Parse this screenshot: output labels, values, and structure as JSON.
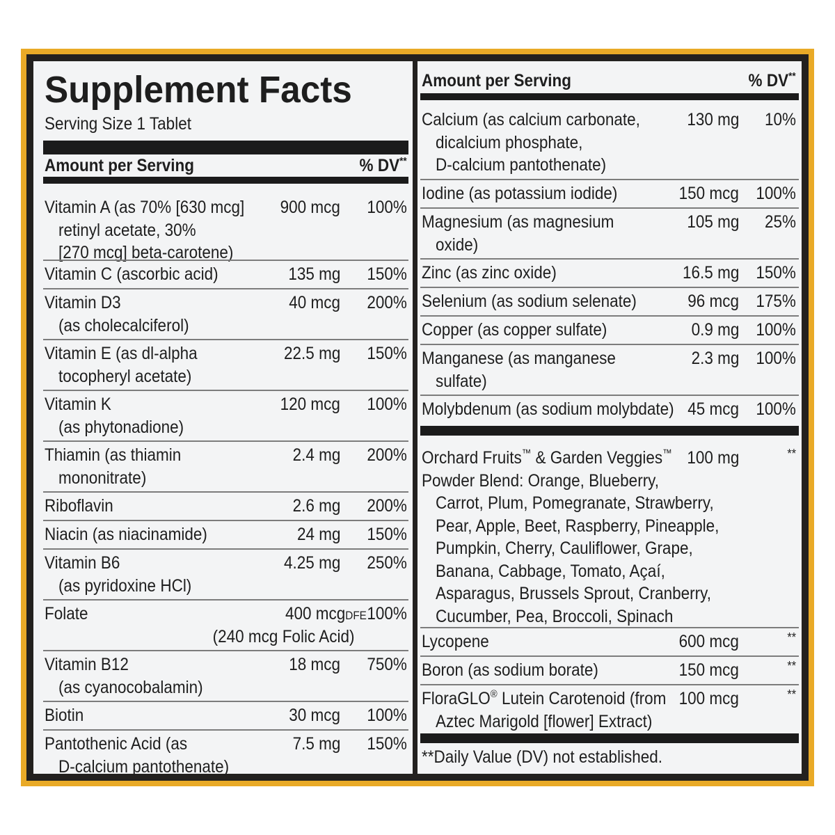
{
  "title": "Supplement Facts",
  "serving_size": "Serving Size 1 Tablet",
  "header": {
    "amount": "Amount per Serving",
    "dv": "% DV",
    "dv_mark": "**"
  },
  "left_rows": [
    {
      "lines": [
        "Vitamin A (as 70% [630 mcg]",
        "retinyl acetate, 30%",
        "[270 mcg] beta-carotene)"
      ],
      "amount": "900 mcg",
      "dv": "100%"
    },
    {
      "lines": [
        "Vitamin C (ascorbic acid)"
      ],
      "amount": "135 mg",
      "dv": "150%"
    },
    {
      "lines": [
        "Vitamin D3",
        "(as cholecalciferol)"
      ],
      "amount": "40 mcg",
      "dv": "200%"
    },
    {
      "lines": [
        "Vitamin E (as dl-alpha",
        "tocopheryl acetate)"
      ],
      "amount": "22.5 mg",
      "dv": "150%"
    },
    {
      "lines": [
        "Vitamin K",
        "(as phytonadione)"
      ],
      "amount": "120 mcg",
      "dv": "100%"
    },
    {
      "lines": [
        "Thiamin (as thiamin",
        "mononitrate)"
      ],
      "amount": "2.4 mg",
      "dv": "200%"
    },
    {
      "lines": [
        "Riboflavin"
      ],
      "amount": "2.6 mg",
      "dv": "200%"
    },
    {
      "lines": [
        "Niacin (as niacinamide)"
      ],
      "amount": "24 mg",
      "dv": "150%"
    },
    {
      "lines": [
        "Vitamin B6",
        "(as pyridoxine HCl)"
      ],
      "amount": "4.25 mg",
      "dv": "250%"
    },
    {
      "lines": [
        "Folate"
      ],
      "amount": "400 mcg",
      "unit_suffix": "DFE",
      "dv": "100%",
      "sub_amount": "(240 mcg Folic Acid)"
    },
    {
      "lines": [
        "Vitamin B12",
        "(as cyanocobalamin)"
      ],
      "amount": "18 mcg",
      "dv": "750%"
    },
    {
      "lines": [
        "Biotin"
      ],
      "amount": "30 mcg",
      "dv": "100%"
    },
    {
      "lines": [
        "Pantothenic Acid (as",
        "D-calcium pantothenate)"
      ],
      "amount": "7.5 mg",
      "dv": "150%"
    }
  ],
  "right_rows": [
    {
      "lines": [
        "Calcium (as calcium carbonate,",
        "dicalcium phosphate,",
        "D-calcium pantothenate)"
      ],
      "amount": "130 mg",
      "dv": "10%"
    },
    {
      "lines": [
        "Iodine (as potassium iodide)"
      ],
      "amount": "150 mcg",
      "dv": "100%"
    },
    {
      "lines": [
        "Magnesium (as magnesium",
        "oxide)"
      ],
      "amount": "105 mg",
      "dv": "25%"
    },
    {
      "lines": [
        "Zinc (as zinc oxide)"
      ],
      "amount": "16.5 mg",
      "dv": "150%"
    },
    {
      "lines": [
        "Selenium (as sodium selenate)"
      ],
      "amount": "96 mcg",
      "dv": "175%"
    },
    {
      "lines": [
        "Copper (as copper sulfate)"
      ],
      "amount": "0.9 mg",
      "dv": "100%"
    },
    {
      "lines": [
        "Manganese (as manganese",
        "sulfate)"
      ],
      "amount": "2.3 mg",
      "dv": "100%"
    },
    {
      "lines": [
        "Molybdenum (as sodium molybdate)"
      ],
      "amount": "45 mcg",
      "dv": "100%"
    }
  ],
  "blend": {
    "name_a": "Orchard Fruits",
    "tm": "™",
    "name_b": " & Garden Veggies",
    "line2": "Powder Blend: Orange, Blueberry,",
    "lines": [
      "Carrot, Plum, Pomegranate, Strawberry,",
      "Pear, Apple, Beet, Raspberry, Pineapple,",
      "Pumpkin, Cherry, Cauliflower, Grape,",
      "Banana, Cabbage, Tomato, Açaí,",
      "Asparagus, Brussels Sprout, Cranberry,",
      "Cucumber, Pea, Broccoli, Spinach"
    ],
    "amount": "100 mg",
    "dv": "**"
  },
  "other_rows": [
    {
      "lines": [
        "Lycopene"
      ],
      "amount": "600 mcg",
      "dv": "**"
    },
    {
      "lines": [
        "Boron (as sodium borate)"
      ],
      "amount": "150 mcg",
      "dv": "**"
    }
  ],
  "lutein": {
    "name": "FloraGLO",
    "reg": "®",
    "rest": " Lutein Carotenoid (from",
    "line2": "Aztec Marigold [flower] Extract)",
    "amount": "100 mcg",
    "dv": "**"
  },
  "footnote": "**Daily Value (DV) not established.",
  "colors": {
    "frame": "#e9aa27",
    "panel": "#f3f4f5",
    "ink": "#1e1e1e",
    "bars": "#1b1b1b"
  }
}
